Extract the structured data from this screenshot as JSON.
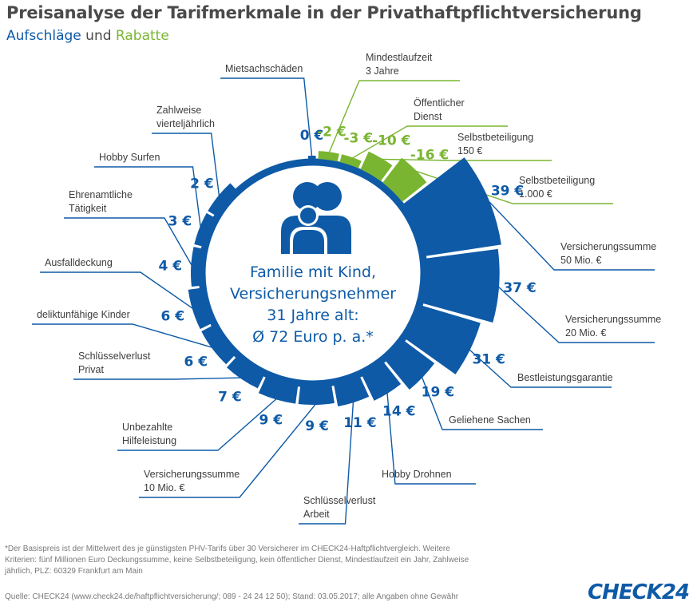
{
  "header": {
    "title": "Preisanalyse der Tarifmerkmale in der Privathaftpflichtversicherung",
    "subtitle_part1": "Aufschläge",
    "subtitle_part2": " und ",
    "subtitle_part3": "Rabatte"
  },
  "center": {
    "lines": [
      "Familie mit Kind,",
      "Versicherungsnehmer",
      "31 Jahre alt:",
      "Ø 72 Euro p. a.*"
    ]
  },
  "colors": {
    "surcharge": "#0e5aa7",
    "discount": "#7ab531",
    "text": "#3c3c3c",
    "title": "#4a4a4a"
  },
  "chart_data": {
    "type": "radial-bar",
    "title": "Preisanalyse der Tarifmerkmale in der Privathaftpflichtversicherung",
    "unit": "€",
    "center_value": 72,
    "segments": [
      {
        "label": "Mietsachschäden",
        "value": 0,
        "value_text": "0 €",
        "kind": "surcharge"
      },
      {
        "label": "Mindestlaufzeit\n3 Jahre",
        "value": -2,
        "value_text": "-2 €",
        "kind": "discount"
      },
      {
        "label": "Öffentlicher\nDienst",
        "value": -3,
        "value_text": "-3 €",
        "kind": "discount"
      },
      {
        "label": "Selbstbeteiligung\n150 €",
        "value": -10,
        "value_text": "-10 €",
        "kind": "discount"
      },
      {
        "label": "Selbstbeteiligung\n1.000 €",
        "value": -16,
        "value_text": "-16 €",
        "kind": "discount"
      },
      {
        "label": "Versicherungssumme\n50 Mio. €",
        "value": 39,
        "value_text": "39 €",
        "kind": "surcharge"
      },
      {
        "label": "Versicherungssumme\n20 Mio. €",
        "value": 37,
        "value_text": "37 €",
        "kind": "surcharge"
      },
      {
        "label": "Bestleistungsgarantie",
        "value": 31,
        "value_text": "31 €",
        "kind": "surcharge"
      },
      {
        "label": "Geliehene Sachen",
        "value": 19,
        "value_text": "19 €",
        "kind": "surcharge"
      },
      {
        "label": "Hobby Drohnen",
        "value": 14,
        "value_text": "14 €",
        "kind": "surcharge"
      },
      {
        "label": "Schlüsselverlust\nArbeit",
        "value": 11,
        "value_text": "11 €",
        "kind": "surcharge"
      },
      {
        "label": "Versicherungssumme\n10 Mio. €",
        "value": 9,
        "value_text": "9 €",
        "kind": "surcharge"
      },
      {
        "label": "Unbezahlte\nHilfeleistung",
        "value": 9,
        "value_text": "9 €",
        "kind": "surcharge"
      },
      {
        "label": "Schlüsselverlust\nPrivat",
        "value": 7,
        "value_text": "7 €",
        "kind": "surcharge"
      },
      {
        "label": "deliktunfähige Kinder",
        "value": 6,
        "value_text": "6 €",
        "kind": "surcharge"
      },
      {
        "label": "Ausfalldeckung",
        "value": 6,
        "value_text": "6 €",
        "kind": "surcharge"
      },
      {
        "label": "Ehrenamtliche\nTätigkeit",
        "value": 4,
        "value_text": "4 €",
        "kind": "surcharge"
      },
      {
        "label": "Hobby Surfen",
        "value": 3,
        "value_text": "3 €",
        "kind": "surcharge"
      },
      {
        "label": "Zahlweise\nvierteljährlich",
        "value": 2,
        "value_text": "2 €",
        "kind": "surcharge"
      }
    ]
  },
  "footnote": "*Der Basispreis ist der Mittelwert des je günstigsten PHV-Tarifs über 30 Versicherer im CHECK24-Haftpflichtvergleich. Weitere Kriterien: fünf Millionen Euro Deckungssumme, keine Selbstbeteiligung, kein öffentlicher Dienst, Mindestlaufzeit ein Jahr, Zahlweise jährlich, PLZ: 60329 Frankfurt am Main",
  "source": "Quelle: CHECK24 (www.check24.de/haftpflichtversicherung/;  089 - 24 24 12 50); Stand: 03.05.2017;  alle Angaben ohne Gewähr",
  "logo": "CHECK24"
}
